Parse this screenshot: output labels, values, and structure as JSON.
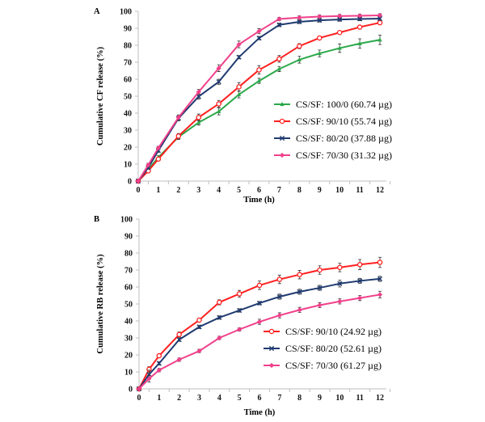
{
  "chart_data": [
    {
      "panel": "A",
      "type": "line",
      "title": "",
      "xlabel": "Time (h)",
      "ylabel": "Cumulative CF release (%)",
      "xlim": [
        0,
        12
      ],
      "ylim": [
        0,
        100
      ],
      "xticks": [
        0,
        1,
        2,
        3,
        4,
        5,
        6,
        7,
        8,
        9,
        10,
        11,
        12
      ],
      "yticks": [
        0,
        10,
        20,
        30,
        40,
        50,
        60,
        70,
        80,
        90,
        100
      ],
      "grid": false,
      "legend_position": "center-right",
      "x": [
        0,
        0.5,
        1,
        2,
        3,
        4,
        5,
        6,
        7,
        8,
        9,
        10,
        11,
        12
      ],
      "series": [
        {
          "name": "CS/SF: 100/0 (60.74 µg)",
          "color": "#2ca84a",
          "marker": "triangle",
          "values": [
            0,
            7,
            14,
            26,
            34.5,
            41,
            51,
            59,
            66,
            71.5,
            75.2,
            78.3,
            81,
            83.2
          ],
          "errors": [
            0,
            1,
            1,
            1.5,
            1.5,
            2,
            2,
            1.5,
            1.5,
            2,
            2,
            2.5,
            2.8,
            2.8
          ]
        },
        {
          "name": "CS/SF: 90/10 (55.74 µg)",
          "color": "#ff2020",
          "marker": "circle",
          "values": [
            0,
            6,
            13,
            26.5,
            37.5,
            45.5,
            55.5,
            65.5,
            72,
            79.5,
            84.3,
            87.5,
            90.7,
            93.3
          ],
          "errors": [
            0,
            1,
            1,
            1.5,
            2,
            2,
            2.5,
            2.5,
            2,
            1.5,
            1,
            1,
            1,
            1
          ]
        },
        {
          "name": "CS/SF: 80/20 (37.88 µg)",
          "color": "#1f3a70",
          "marker": "x",
          "values": [
            0,
            8,
            18,
            37,
            49.8,
            58.5,
            73,
            84.2,
            92,
            93.8,
            94.7,
            95.2,
            95.5,
            95.7
          ],
          "errors": [
            0,
            1,
            1,
            1.5,
            1.5,
            1.5,
            1,
            1,
            1,
            1,
            1,
            1,
            1,
            1
          ]
        },
        {
          "name": "CS/SF: 70/30 (31.32 µg)",
          "color": "#f0408a",
          "marker": "diamond",
          "values": [
            0,
            9.5,
            19.5,
            37.5,
            52.5,
            66.5,
            80.5,
            88.3,
            95.5,
            96.3,
            96.9,
            97.2,
            97.4,
            97.6
          ],
          "errors": [
            0,
            1,
            1,
            1.5,
            1.5,
            2,
            2,
            1.5,
            1,
            1,
            1,
            1,
            1,
            1
          ]
        }
      ]
    },
    {
      "panel": "B",
      "type": "line",
      "title": "",
      "xlabel": "Time (h)",
      "ylabel": "Cumulative RB release (%)",
      "xlim": [
        0,
        12
      ],
      "ylim": [
        0,
        100
      ],
      "xticks": [
        0,
        1,
        2,
        3,
        4,
        5,
        6,
        7,
        8,
        9,
        10,
        11,
        12
      ],
      "yticks": [
        0,
        10,
        20,
        30,
        40,
        50,
        60,
        70,
        80,
        90,
        100
      ],
      "grid": false,
      "legend_position": "center-right",
      "x": [
        0,
        0.5,
        1,
        2,
        3,
        4,
        5,
        6,
        7,
        8,
        9,
        10,
        11,
        12
      ],
      "series": [
        {
          "name": "CS/SF: 90/10 (24.92 µg)",
          "color": "#ff2020",
          "marker": "circle",
          "values": [
            0,
            11.5,
            19.5,
            32,
            40.5,
            51,
            56,
            61,
            64.5,
            67.3,
            70,
            71.5,
            73.2,
            74.5
          ],
          "errors": [
            0,
            1.5,
            1,
            1.5,
            1,
            1.5,
            2,
            2.5,
            2.5,
            2.5,
            2.5,
            2.5,
            3,
            3
          ]
        },
        {
          "name": "CS/SF: 80/20 (52.61 µg)",
          "color": "#1f3a70",
          "marker": "x",
          "values": [
            0,
            8.5,
            15,
            29,
            36.5,
            42,
            46.2,
            50.5,
            54.3,
            57.2,
            59.5,
            62,
            63.6,
            64.8
          ],
          "errors": [
            0,
            2.5,
            1,
            1,
            1,
            1,
            1,
            1,
            1.5,
            1.5,
            1.5,
            2,
            1.5,
            1.5
          ]
        },
        {
          "name": "CS/SF: 70/30 (61.27 µg)",
          "color": "#f0408a",
          "marker": "diamond",
          "values": [
            0,
            6,
            11,
            17.2,
            22.3,
            30,
            35,
            39.5,
            43.3,
            46.5,
            49.3,
            51.5,
            53.5,
            55.5
          ],
          "errors": [
            0,
            2,
            1,
            1,
            1,
            1,
            1,
            1.5,
            1.5,
            1.5,
            1.5,
            1.5,
            1.5,
            2
          ]
        }
      ]
    }
  ]
}
